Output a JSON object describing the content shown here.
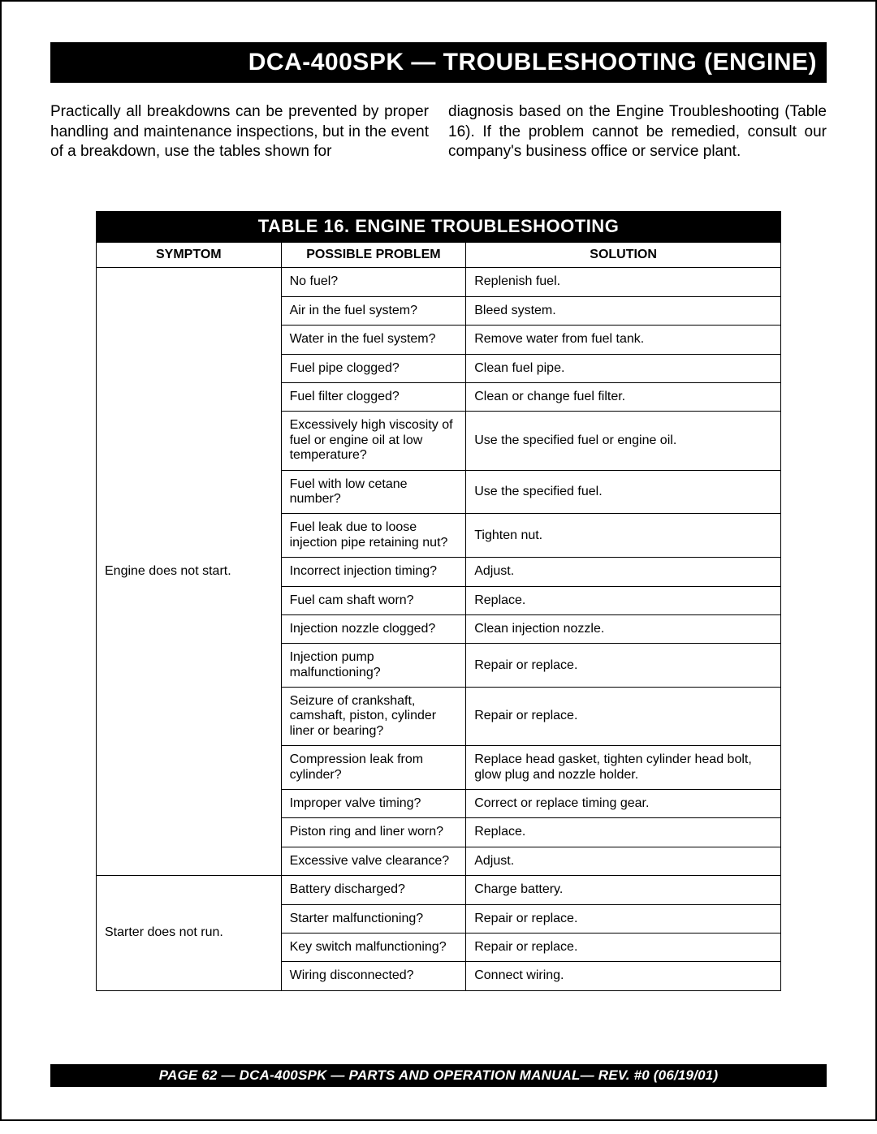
{
  "title_bar": "DCA-400SPK — TROUBLESHOOTING (ENGINE)",
  "intro": {
    "col1": "Practically all breakdowns can be prevented by proper handling and maintenance inspections, but in the event of a breakdown, use the tables  shown for",
    "col2": "diagnosis based on the Engine Troubleshooting (Table 16). If the problem cannot be remedied,  consult our company's business office or service plant."
  },
  "table": {
    "title": "TABLE 16. ENGINE TROUBLESHOOTING",
    "headers": {
      "symptom": "SYMPTOM",
      "problem": "POSSIBLE PROBLEM",
      "solution": "SOLUTION"
    },
    "groups": [
      {
        "symptom": "Engine does not start.",
        "rows": [
          {
            "problem": "No fuel?",
            "solution": "Replenish fuel."
          },
          {
            "problem": "Air in the fuel system?",
            "solution": "Bleed system."
          },
          {
            "problem": "Water in the fuel system?",
            "solution": "Remove water from fuel tank."
          },
          {
            "problem": "Fuel pipe clogged?",
            "solution": "Clean fuel pipe."
          },
          {
            "problem": "Fuel filter clogged?",
            "solution": "Clean or change fuel filter."
          },
          {
            "problem": "Excessively  high viscosity of fuel or engine oil at low temperature?",
            "solution": "Use the specified fuel or engine oil."
          },
          {
            "problem": "Fuel with low cetane number?",
            "solution": "Use the specified fuel."
          },
          {
            "problem": "Fuel leak due to loose injection pipe retaining nut?",
            "solution": "Tighten nut."
          },
          {
            "problem": "Incorrect injection timing?",
            "solution": "Adjust."
          },
          {
            "problem": "Fuel cam shaft worn?",
            "solution": "Replace."
          },
          {
            "problem": "Injection nozzle clogged?",
            "solution": "Clean injection nozzle."
          },
          {
            "problem": "Injection pump malfunctioning?",
            "solution": "Repair or replace."
          },
          {
            "problem": "Seizure of crankshaft, camshaft, piston, cylinder liner or bearing?",
            "solution": "Repair or replace."
          },
          {
            "problem": "Compression leak from cylinder?",
            "solution": "Replace head gasket, tighten cylinder head bolt, glow plug and nozzle holder."
          },
          {
            "problem": "Improper valve timing?",
            "solution": "Correct or replace timing gear."
          },
          {
            "problem": "Piston ring and liner worn?",
            "solution": "Replace."
          },
          {
            "problem": "Excessive valve clearance?",
            "solution": "Adjust."
          }
        ]
      },
      {
        "symptom": "Starter does not run.",
        "rows": [
          {
            "problem": "Battery discharged?",
            "solution": "Charge battery."
          },
          {
            "problem": "Starter malfunctioning?",
            "solution": "Repair or replace."
          },
          {
            "problem": "Key switch malfunctioning?",
            "solution": "Repair or replace."
          },
          {
            "problem": "Wiring disconnected?",
            "solution": "Connect wiring."
          }
        ]
      }
    ]
  },
  "footer": "PAGE 62 — DCA-400SPK — PARTS AND OPERATION MANUAL— REV. #0  (06/19/01)"
}
